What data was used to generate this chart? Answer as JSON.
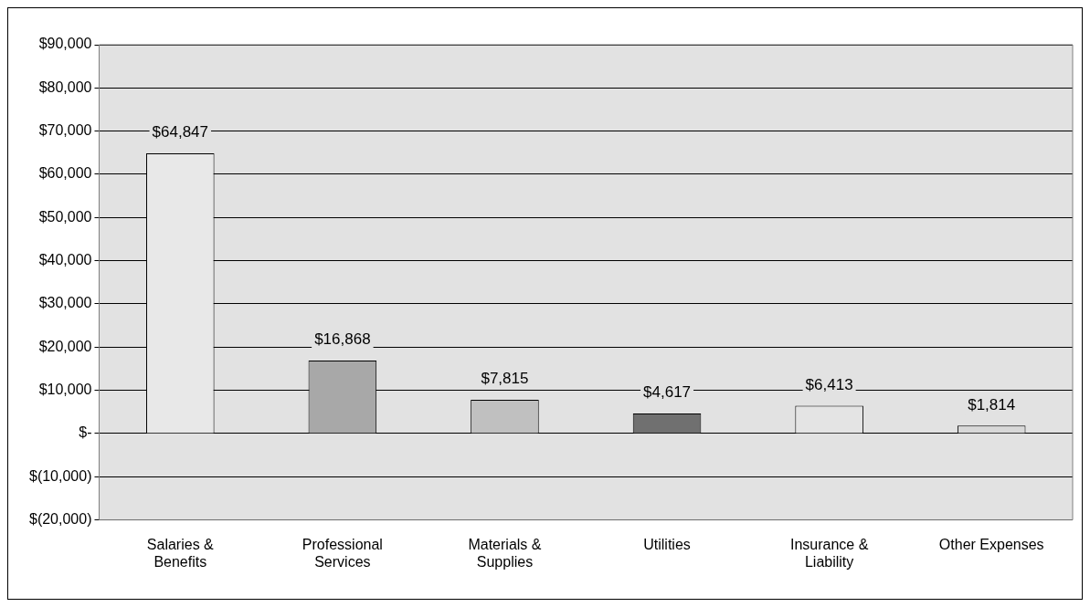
{
  "chart_data": {
    "type": "bar",
    "categories": [
      "Salaries & Benefits",
      "Professional Services",
      "Materials & Supplies",
      "Utilities",
      "Insurance & Liability",
      "Other Expenses"
    ],
    "values": [
      64847,
      16868,
      7815,
      4617,
      6413,
      1814
    ],
    "value_labels": [
      "$64,847",
      "$16,868",
      "$7,815",
      "$4,617",
      "$6,413",
      "$1,814"
    ],
    "colors": [
      "#e8e8e8",
      "#a8a8a8",
      "#c0c0c0",
      "#707070",
      "#e4e4e4",
      "#d8d8d8"
    ],
    "ylim": [
      -20000,
      90000
    ],
    "yticks": [
      {
        "value": -20000,
        "label": "$(20,000)"
      },
      {
        "value": -10000,
        "label": "$(10,000)"
      },
      {
        "value": 0,
        "label": "$-"
      },
      {
        "value": 10000,
        "label": "$10,000"
      },
      {
        "value": 20000,
        "label": "$20,000"
      },
      {
        "value": 30000,
        "label": "$30,000"
      },
      {
        "value": 40000,
        "label": "$40,000"
      },
      {
        "value": 50000,
        "label": "$50,000"
      },
      {
        "value": 60000,
        "label": "$60,000"
      },
      {
        "value": 70000,
        "label": "$70,000"
      },
      {
        "value": 80000,
        "label": "$80,000"
      },
      {
        "value": 90000,
        "label": "$90,000"
      }
    ],
    "grid": "y",
    "legend": false
  }
}
